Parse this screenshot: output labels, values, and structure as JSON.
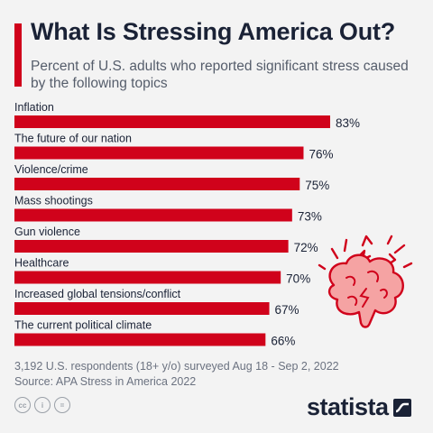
{
  "header": {
    "title": "What Is Stressing America Out?",
    "subtitle": "Percent of U.S. adults who reported significant stress caused by the following topics"
  },
  "chart_data": {
    "type": "bar",
    "orientation": "horizontal",
    "categories": [
      "Inflation",
      "The future of our nation",
      "Violence/crime",
      "Mass shootings",
      "Gun violence",
      "Healthcare",
      "Increased global tensions/conflict",
      "The current political climate"
    ],
    "values": [
      83,
      76,
      75,
      73,
      72,
      70,
      67,
      66
    ],
    "value_labels": [
      "83%",
      "76%",
      "75%",
      "73%",
      "72%",
      "70%",
      "67%",
      "66%"
    ],
    "unit": "%",
    "grid": false,
    "legend": "none",
    "bar_color": "#d0021b"
  },
  "footer": {
    "note": "3,192 U.S. respondents (18+ y/o) surveyed Aug 18 - Sep 2, 2022",
    "source": "Source: APA Stress in America 2022",
    "license_icons": [
      "cc",
      "i",
      "="
    ],
    "brand": "statista"
  },
  "colors": {
    "accent": "#d0021b",
    "title": "#1a2236",
    "background": "#f3f3f3",
    "illustration": "#f0a0a0"
  }
}
